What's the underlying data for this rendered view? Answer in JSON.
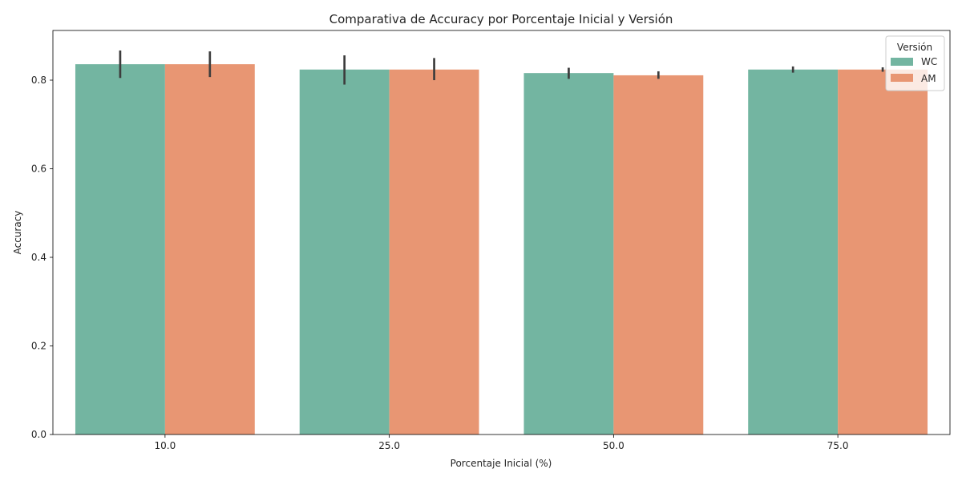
{
  "chart_data": {
    "type": "bar",
    "title": "Comparativa de Accuracy por Porcentaje Inicial y Versión",
    "xlabel": "Porcentaje Inicial (%)",
    "ylabel": "Accuracy",
    "categories": [
      "10.0",
      "25.0",
      "50.0",
      "75.0"
    ],
    "ylim": [
      0,
      0.9
    ],
    "yticks": [
      0.0,
      0.2,
      0.4,
      0.6,
      0.8
    ],
    "grid": false,
    "legend": {
      "title": "Versión",
      "placement": "top-right"
    },
    "series": [
      {
        "name": "WC",
        "color": "#73b5a1",
        "values": [
          0.836,
          0.824,
          0.816,
          0.824
        ],
        "err_low": [
          0.805,
          0.79,
          0.803,
          0.817
        ],
        "err_high": [
          0.867,
          0.856,
          0.828,
          0.831
        ]
      },
      {
        "name": "AM",
        "color": "#e89673",
        "values": [
          0.836,
          0.824,
          0.811,
          0.824
        ],
        "err_low": [
          0.807,
          0.8,
          0.803,
          0.819
        ],
        "err_high": [
          0.865,
          0.85,
          0.82,
          0.829
        ]
      }
    ]
  }
}
